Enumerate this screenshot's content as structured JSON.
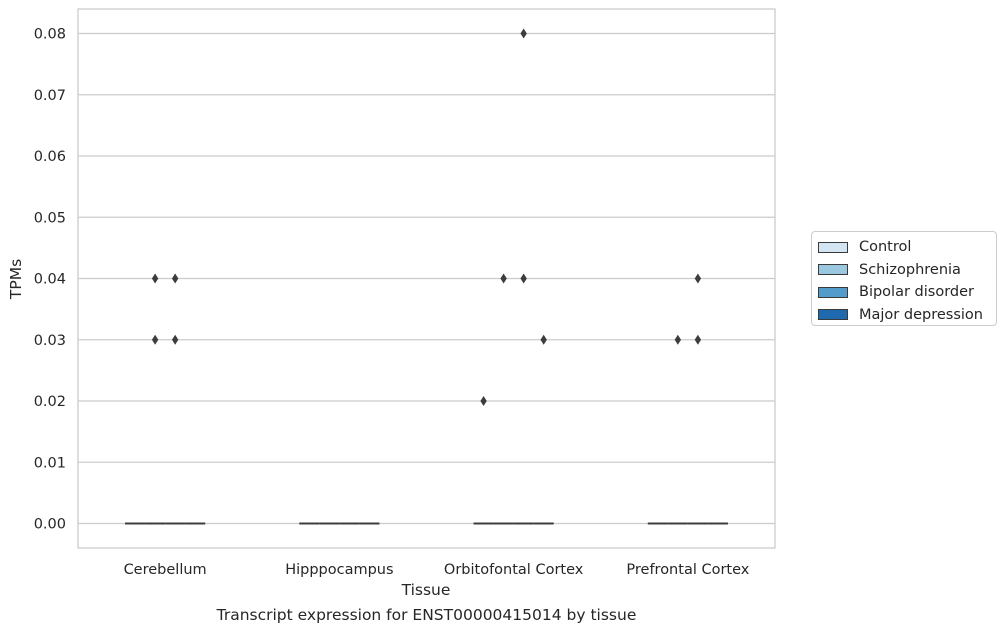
{
  "chart_data": {
    "type": "box",
    "caption": "Transcript expression for ENST00000415014 by tissue",
    "xlabel": "Tissue",
    "ylabel": "TPMs",
    "ylim": [
      -0.004,
      0.084
    ],
    "yticks": [
      "0.00",
      "0.01",
      "0.02",
      "0.03",
      "0.04",
      "0.05",
      "0.06",
      "0.07",
      "0.08"
    ],
    "ytick_values": [
      0,
      0.01,
      0.02,
      0.03,
      0.04,
      0.05,
      0.06,
      0.07,
      0.08
    ],
    "grid": true,
    "legend_placement": "right",
    "categories": [
      "Cerebellum",
      "Hipppocampus",
      "Orbitofontal Cortex",
      "Prefrontal Cortex"
    ],
    "series": [
      {
        "name": "Control",
        "color": "#d3e4f2",
        "median": [
          0,
          0,
          0,
          0
        ],
        "outliers": [
          [],
          [],
          [
            0.02
          ],
          []
        ]
      },
      {
        "name": "Schizophrenia",
        "color": "#9ac8e0",
        "median": [
          0,
          0,
          0,
          0
        ],
        "outliers": [
          [
            0.03,
            0.04
          ],
          [],
          [
            0.04
          ],
          [
            0.03
          ]
        ]
      },
      {
        "name": "Bipolar disorder",
        "color": "#519ccb",
        "median": [
          0,
          0,
          0,
          0
        ],
        "outliers": [
          [
            0.03,
            0.04
          ],
          [],
          [
            0.04,
            0.08
          ],
          [
            0.03,
            0.04
          ]
        ]
      },
      {
        "name": "Major depression",
        "color": "#1f69ae",
        "median": [
          0,
          0,
          0,
          0
        ],
        "outliers": [
          [],
          [],
          [
            0.03
          ],
          []
        ]
      }
    ]
  }
}
